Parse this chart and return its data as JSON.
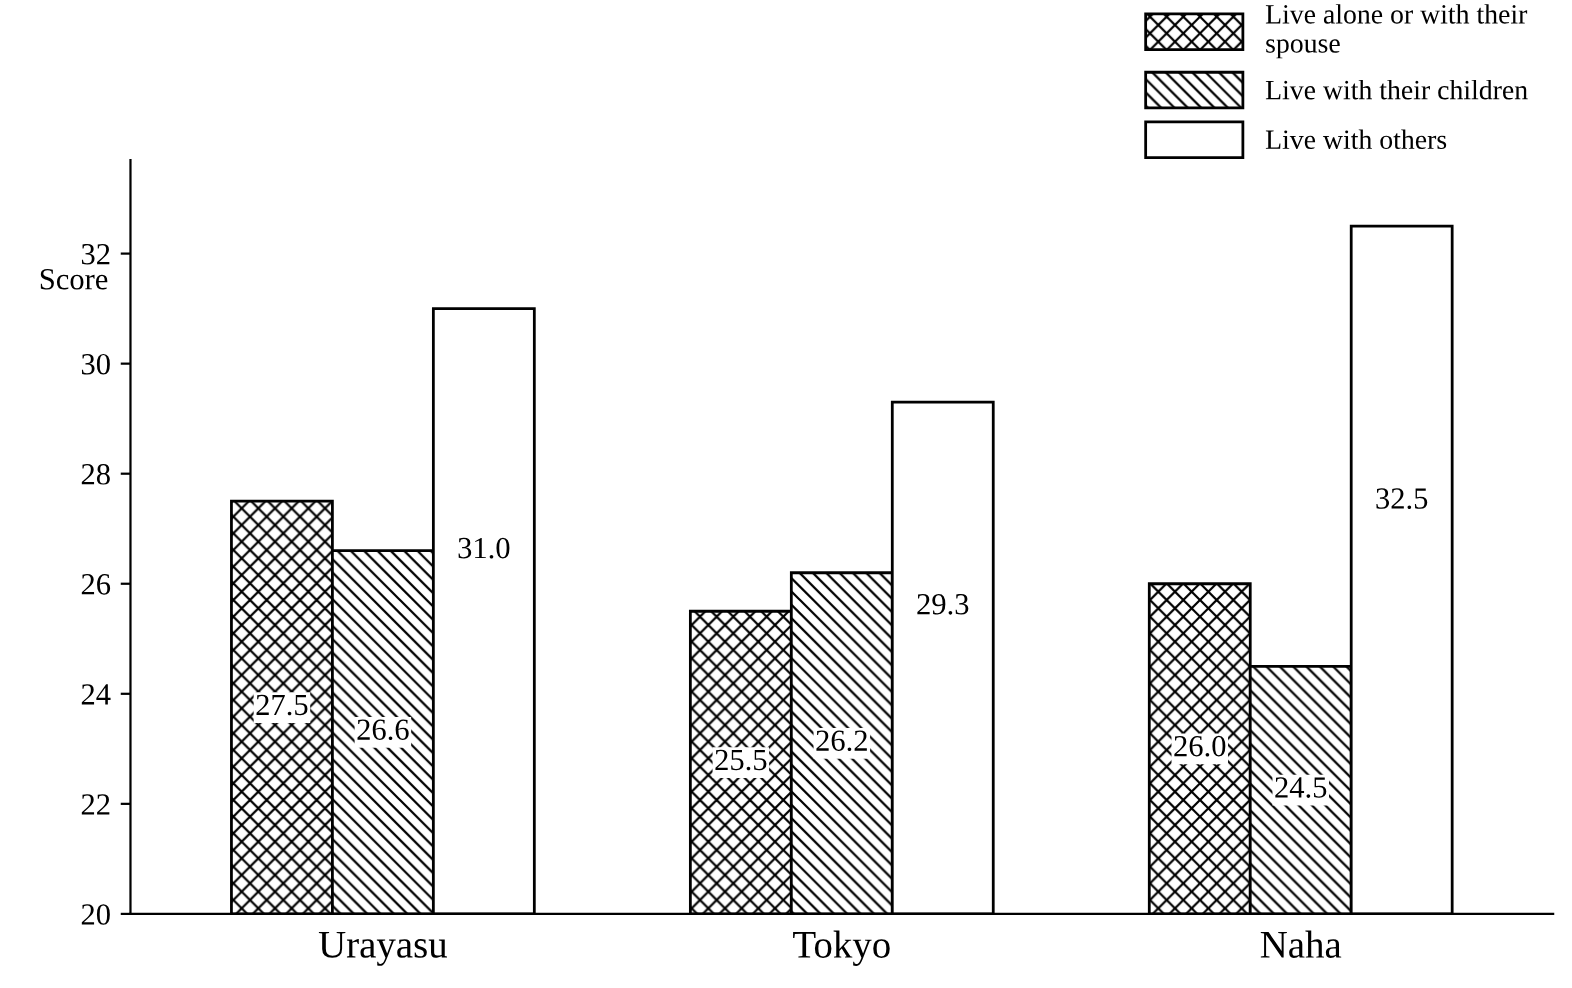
{
  "chart_data": {
    "type": "bar",
    "ylabel": "Score",
    "categories": [
      "Urayasu",
      "Tokyo",
      "Naha"
    ],
    "series": [
      {
        "name": "Live alone or with their\nspouse",
        "color": "#000000",
        "values": [
          27.5,
          25.5,
          26.0
        ],
        "value_labels": [
          "27.5",
          "25.5",
          "26.0"
        ]
      },
      {
        "name": "Live with their children",
        "color": "#000000",
        "values": [
          26.6,
          26.2,
          24.5
        ],
        "value_labels": [
          "26.6",
          "26.2",
          "24.5"
        ]
      },
      {
        "name": "Live with others",
        "color": "#ffffff",
        "values": [
          31.0,
          29.3,
          32.5
        ],
        "value_labels": [
          "31.0",
          "29.3",
          "32.5"
        ]
      }
    ],
    "ylim": [
      20,
      33.7
    ],
    "yticks": [
      20,
      22,
      24,
      26,
      28,
      30,
      32
    ],
    "grid": false,
    "legend": "top right"
  }
}
